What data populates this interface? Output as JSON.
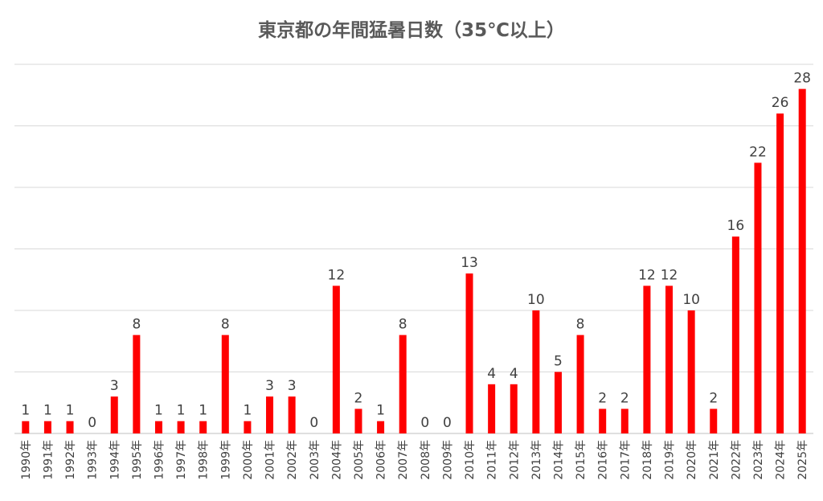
{
  "chart_data": {
    "type": "bar",
    "title": "東京都の年間猛暑日数（35℃以上）",
    "xlabel": "",
    "ylabel": "",
    "ylim": [
      0,
      30
    ],
    "grid": true,
    "legend": "none",
    "bar_color": "#ff0000",
    "categories": [
      "1990年",
      "1991年",
      "1992年",
      "1993年",
      "1994年",
      "1995年",
      "1996年",
      "1997年",
      "1998年",
      "1999年",
      "2000年",
      "2001年",
      "2002年",
      "2003年",
      "2004年",
      "2005年",
      "2006年",
      "2007年",
      "2008年",
      "2009年",
      "2010年",
      "2011年",
      "2012年",
      "2013年",
      "2014年",
      "2015年",
      "2016年",
      "2017年",
      "2018年",
      "2019年",
      "2020年",
      "2021年",
      "2022年",
      "2023年",
      "2024年",
      "2025年"
    ],
    "values": [
      1,
      1,
      1,
      0,
      3,
      8,
      1,
      1,
      1,
      8,
      1,
      3,
      3,
      0,
      12,
      2,
      1,
      8,
      0,
      0,
      13,
      4,
      4,
      10,
      5,
      8,
      2,
      2,
      12,
      12,
      10,
      2,
      16,
      22,
      26,
      28
    ]
  }
}
